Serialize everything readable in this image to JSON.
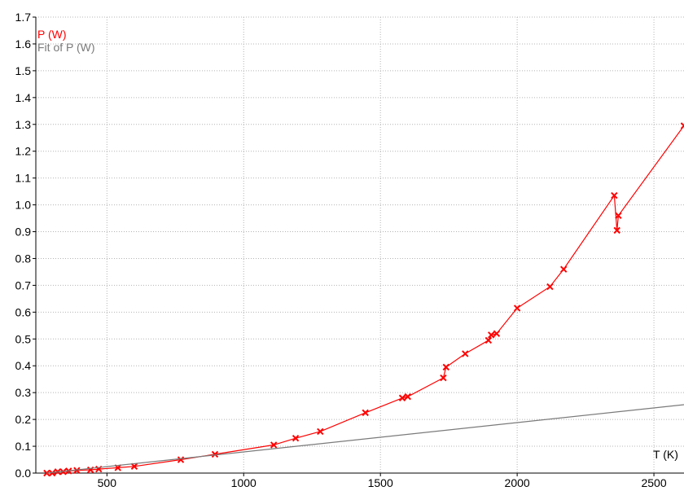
{
  "chart_data": {
    "type": "line",
    "xlabel": "T (K)",
    "ylabel": "",
    "xlim": [
      240,
      2610
    ],
    "ylim": [
      0,
      1.7
    ],
    "x_ticks": [
      500,
      1000,
      1500,
      2000,
      2500
    ],
    "y_ticks": [
      0.0,
      0.1,
      0.2,
      0.3,
      0.4,
      0.5,
      0.6,
      0.7,
      0.8,
      0.9,
      1.0,
      1.1,
      1.2,
      1.3,
      1.4,
      1.5,
      1.6,
      1.7
    ],
    "x_tick_labels": [
      "500",
      "1000",
      "1500",
      "2000",
      "2500"
    ],
    "y_tick_labels": [
      "0.0",
      "0.1",
      "0.2",
      "0.3",
      "0.4",
      "0.5",
      "0.6",
      "0.7",
      "0.8",
      "0.9",
      "1.0",
      "1.1",
      "1.2",
      "1.3",
      "1.4",
      "1.5",
      "1.6",
      "1.7"
    ],
    "grid": true,
    "legend_position": "top-left",
    "series": [
      {
        "name": "P (W)",
        "color": "#ff0000",
        "marker": "x",
        "x": [
          280,
          300,
          320,
          340,
          360,
          390,
          440,
          470,
          540,
          600,
          770,
          895,
          1110,
          1190,
          1280,
          1445,
          1580,
          1600,
          1730,
          1740,
          1810,
          1895,
          1905,
          1925,
          2000,
          2120,
          2170,
          2355,
          2365,
          2370,
          2610
        ],
        "y": [
          0.0,
          0.0,
          0.005,
          0.005,
          0.008,
          0.01,
          0.012,
          0.015,
          0.02,
          0.025,
          0.05,
          0.07,
          0.105,
          0.13,
          0.155,
          0.225,
          0.28,
          0.285,
          0.355,
          0.395,
          0.445,
          0.495,
          0.515,
          0.52,
          0.615,
          0.695,
          0.76,
          1.035,
          0.905,
          0.96,
          1.295
        ]
      },
      {
        "name": "Fit of P (W)",
        "color": "#7a7a7a",
        "marker": "none",
        "x": [
          280,
          2610
        ],
        "y": [
          0.0,
          0.255
        ]
      }
    ]
  }
}
